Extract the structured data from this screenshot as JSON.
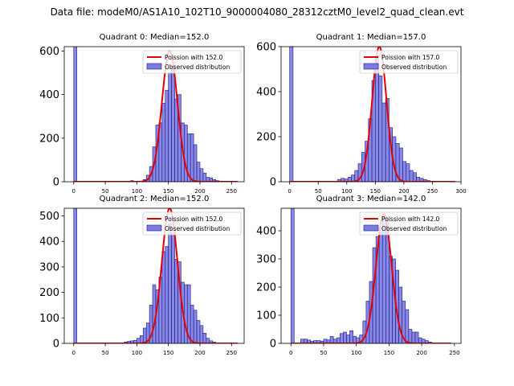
{
  "figure_title": "Data file: modeM0/AS1A10_102T10_9000004080_28312cztM0_level2_quad_clean.evt",
  "colors": {
    "bar_fill": "#7b7be6",
    "bar_edge": "#1a1a7a",
    "poisson": "#e60000"
  },
  "chart_data": [
    {
      "type": "bar",
      "title": "Quadrant 0: Median=152.0",
      "legend": [
        "Poission with 152.0",
        "Observed distribution"
      ],
      "legend_position": "top-right",
      "xlim": [
        -15,
        270
      ],
      "ylim": [
        0,
        620
      ],
      "xticks": [
        0,
        50,
        100,
        150,
        200,
        250
      ],
      "yticks": [
        0,
        200,
        400,
        600
      ],
      "bin_width": 5,
      "bins": [
        [
          0,
          620
        ],
        [
          90,
          5
        ],
        [
          110,
          10
        ],
        [
          115,
          30
        ],
        [
          120,
          70
        ],
        [
          125,
          160
        ],
        [
          130,
          260
        ],
        [
          135,
          270
        ],
        [
          140,
          360
        ],
        [
          145,
          420
        ],
        [
          150,
          500
        ],
        [
          155,
          530
        ],
        [
          160,
          380
        ],
        [
          165,
          400
        ],
        [
          170,
          270
        ],
        [
          175,
          260
        ],
        [
          180,
          220
        ],
        [
          185,
          220
        ],
        [
          190,
          170
        ],
        [
          195,
          90
        ],
        [
          200,
          60
        ],
        [
          205,
          40
        ],
        [
          210,
          20
        ],
        [
          215,
          18
        ],
        [
          220,
          10
        ],
        [
          225,
          5
        ],
        [
          230,
          3
        ]
      ],
      "poisson": {
        "mu": 152,
        "peak": 600,
        "x_range": [
          0,
          260
        ]
      }
    },
    {
      "type": "bar",
      "title": "Quadrant 1: Median=157.0",
      "legend": [
        "Poission with 157.0",
        "Observed distribution"
      ],
      "legend_position": "top-right",
      "xlim": [
        -15,
        300
      ],
      "ylim": [
        0,
        600
      ],
      "xticks": [
        0,
        50,
        100,
        150,
        200,
        250,
        300
      ],
      "yticks": [
        0,
        200,
        400,
        600
      ],
      "bin_width": 6,
      "bins": [
        [
          0,
          600
        ],
        [
          84,
          10
        ],
        [
          90,
          15
        ],
        [
          96,
          12
        ],
        [
          102,
          20
        ],
        [
          108,
          30
        ],
        [
          114,
          50
        ],
        [
          120,
          80
        ],
        [
          126,
          130
        ],
        [
          132,
          180
        ],
        [
          138,
          280
        ],
        [
          144,
          450
        ],
        [
          150,
          560
        ],
        [
          156,
          470
        ],
        [
          162,
          350
        ],
        [
          168,
          370
        ],
        [
          174,
          240
        ],
        [
          180,
          200
        ],
        [
          186,
          170
        ],
        [
          192,
          150
        ],
        [
          198,
          90
        ],
        [
          204,
          80
        ],
        [
          210,
          50
        ],
        [
          216,
          40
        ],
        [
          222,
          20
        ],
        [
          228,
          15
        ],
        [
          234,
          10
        ],
        [
          240,
          5
        ]
      ],
      "poisson": {
        "mu": 157,
        "peak": 600,
        "x_range": [
          0,
          290
        ]
      }
    },
    {
      "type": "bar",
      "title": "Quadrant 2: Median=152.0",
      "legend": [
        "Poission with 152.0",
        "Observed distribution"
      ],
      "legend_position": "top-right",
      "xlim": [
        -15,
        270
      ],
      "ylim": [
        0,
        530
      ],
      "xticks": [
        0,
        50,
        100,
        150,
        200,
        250
      ],
      "yticks": [
        0,
        100,
        200,
        300,
        400,
        500
      ],
      "bin_width": 5,
      "bins": [
        [
          0,
          530
        ],
        [
          80,
          5
        ],
        [
          85,
          8
        ],
        [
          90,
          10
        ],
        [
          95,
          12
        ],
        [
          100,
          20
        ],
        [
          105,
          30
        ],
        [
          110,
          60
        ],
        [
          115,
          80
        ],
        [
          120,
          150
        ],
        [
          125,
          230
        ],
        [
          130,
          210
        ],
        [
          135,
          260
        ],
        [
          140,
          360
        ],
        [
          145,
          380
        ],
        [
          150,
          470
        ],
        [
          155,
          430
        ],
        [
          160,
          330
        ],
        [
          165,
          320
        ],
        [
          170,
          240
        ],
        [
          175,
          230
        ],
        [
          180,
          230
        ],
        [
          185,
          150
        ],
        [
          190,
          130
        ],
        [
          195,
          90
        ],
        [
          200,
          70
        ],
        [
          205,
          40
        ],
        [
          210,
          20
        ],
        [
          215,
          10
        ],
        [
          220,
          5
        ]
      ],
      "poisson": {
        "mu": 152,
        "peak": 530,
        "x_range": [
          0,
          260
        ]
      }
    },
    {
      "type": "bar",
      "title": "Quadrant 3: Median=142.0",
      "legend": [
        "Poission with 142.0",
        "Observed distribution"
      ],
      "legend_position": "top-right",
      "xlim": [
        -15,
        260
      ],
      "ylim": [
        0,
        480
      ],
      "xticks": [
        0,
        50,
        100,
        150,
        200,
        250
      ],
      "yticks": [
        0,
        100,
        200,
        300,
        400
      ],
      "bin_width": 5,
      "bins": [
        [
          0,
          480
        ],
        [
          15,
          15
        ],
        [
          20,
          15
        ],
        [
          25,
          12
        ],
        [
          30,
          8
        ],
        [
          35,
          10
        ],
        [
          40,
          10
        ],
        [
          45,
          8
        ],
        [
          50,
          15
        ],
        [
          55,
          12
        ],
        [
          60,
          25
        ],
        [
          65,
          15
        ],
        [
          70,
          20
        ],
        [
          75,
          35
        ],
        [
          80,
          40
        ],
        [
          85,
          30
        ],
        [
          90,
          45
        ],
        [
          95,
          25
        ],
        [
          100,
          20
        ],
        [
          105,
          30
        ],
        [
          110,
          80
        ],
        [
          115,
          150
        ],
        [
          120,
          220
        ],
        [
          125,
          340
        ],
        [
          130,
          380
        ],
        [
          135,
          410
        ],
        [
          140,
          450
        ],
        [
          145,
          440
        ],
        [
          150,
          310
        ],
        [
          155,
          300
        ],
        [
          160,
          260
        ],
        [
          165,
          200
        ],
        [
          170,
          150
        ],
        [
          175,
          120
        ],
        [
          180,
          50
        ],
        [
          185,
          40
        ],
        [
          190,
          40
        ],
        [
          195,
          20
        ],
        [
          200,
          15
        ],
        [
          205,
          10
        ],
        [
          210,
          5
        ]
      ],
      "poisson": {
        "mu": 142,
        "peak": 460,
        "x_range": [
          0,
          245
        ]
      }
    }
  ]
}
